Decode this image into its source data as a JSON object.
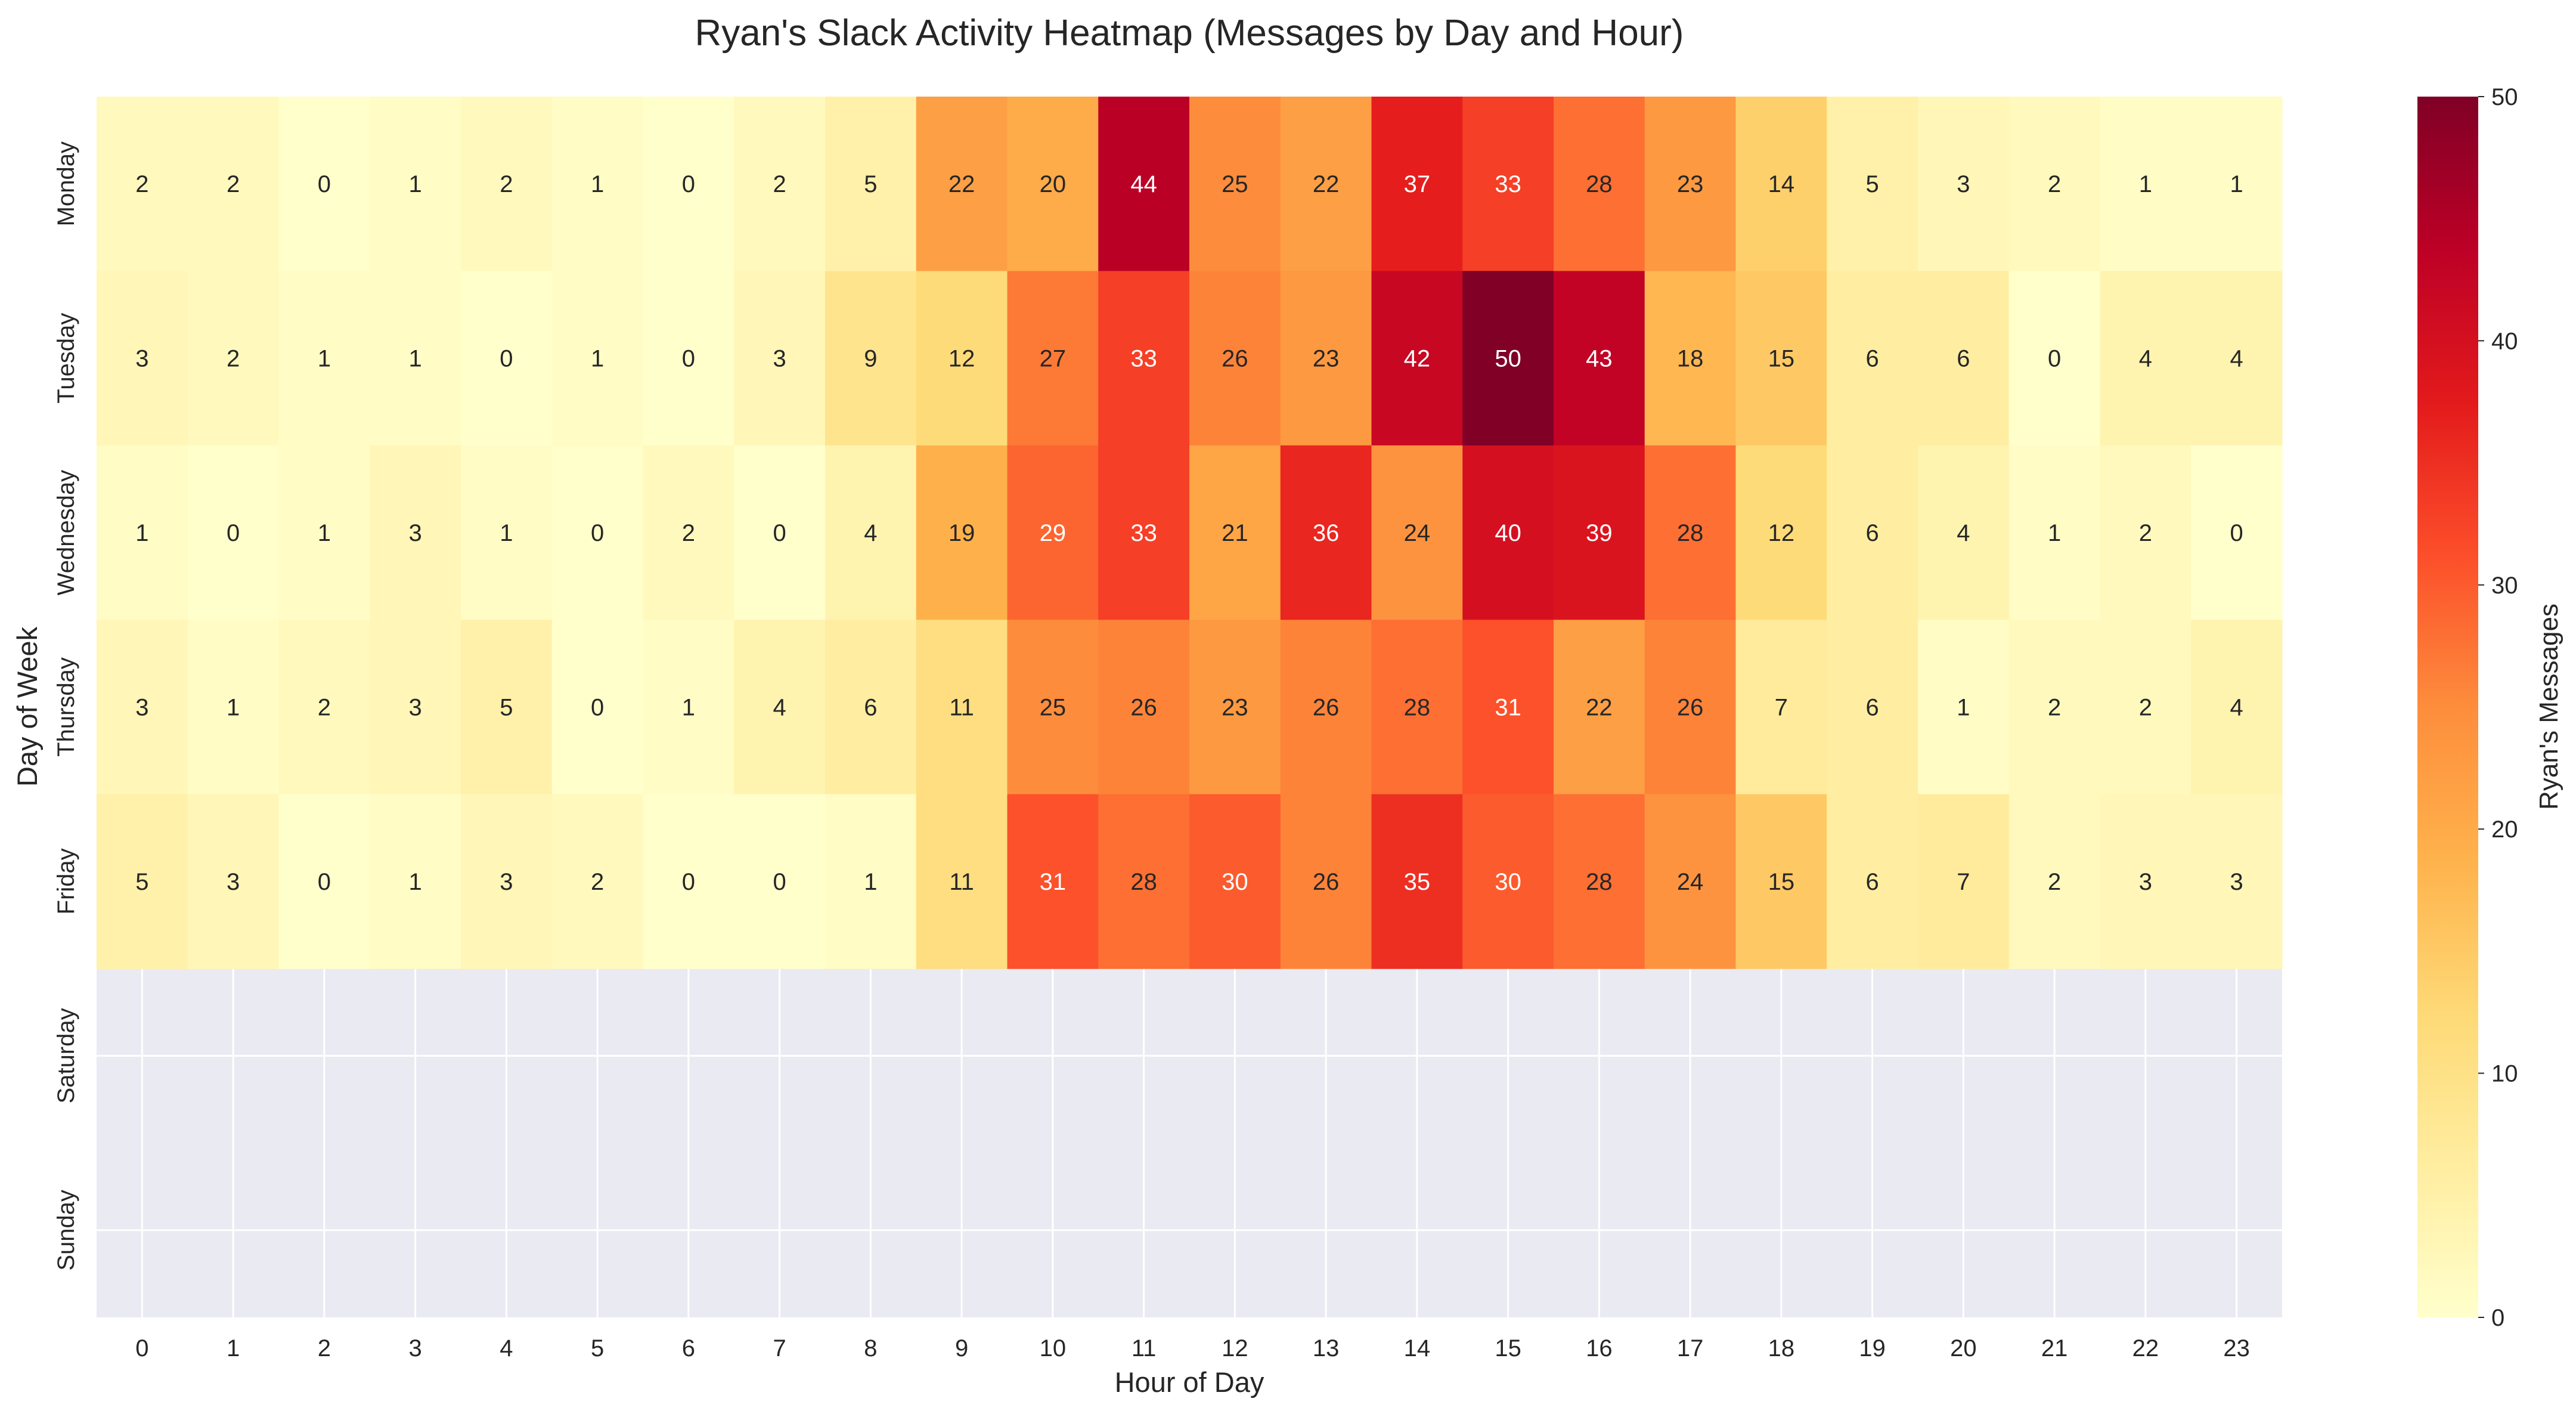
{
  "chart_data": {
    "type": "heatmap",
    "title": "Ryan's Slack Activity Heatmap (Messages by Day and Hour)",
    "xlabel": "Hour of Day",
    "ylabel": "Day of Week",
    "x": [
      "0",
      "1",
      "2",
      "3",
      "4",
      "5",
      "6",
      "7",
      "8",
      "9",
      "10",
      "11",
      "12",
      "13",
      "14",
      "15",
      "16",
      "17",
      "18",
      "19",
      "20",
      "21",
      "22",
      "23"
    ],
    "y": [
      "Monday",
      "Tuesday",
      "Wednesday",
      "Thursday",
      "Friday",
      "Saturday",
      "Sunday"
    ],
    "values": [
      [
        2,
        2,
        0,
        1,
        2,
        1,
        0,
        2,
        5,
        22,
        20,
        44,
        25,
        22,
        37,
        33,
        28,
        23,
        14,
        5,
        3,
        2,
        1,
        1
      ],
      [
        3,
        2,
        1,
        1,
        0,
        1,
        0,
        3,
        9,
        12,
        27,
        33,
        26,
        23,
        42,
        50,
        43,
        18,
        15,
        6,
        6,
        0,
        4,
        4
      ],
      [
        1,
        0,
        1,
        3,
        1,
        0,
        2,
        0,
        4,
        19,
        29,
        33,
        21,
        36,
        24,
        40,
        39,
        28,
        12,
        6,
        4,
        1,
        2,
        0
      ],
      [
        3,
        1,
        2,
        3,
        5,
        0,
        1,
        4,
        6,
        11,
        25,
        26,
        23,
        26,
        28,
        31,
        22,
        26,
        7,
        6,
        1,
        2,
        2,
        4
      ],
      [
        5,
        3,
        0,
        1,
        3,
        2,
        0,
        0,
        1,
        11,
        31,
        28,
        30,
        26,
        35,
        30,
        28,
        24,
        15,
        6,
        7,
        2,
        3,
        3
      ],
      [
        null,
        null,
        null,
        null,
        null,
        null,
        null,
        null,
        null,
        null,
        null,
        null,
        null,
        null,
        null,
        null,
        null,
        null,
        null,
        null,
        null,
        null,
        null,
        null
      ],
      [
        null,
        null,
        null,
        null,
        null,
        null,
        null,
        null,
        null,
        null,
        null,
        null,
        null,
        null,
        null,
        null,
        null,
        null,
        null,
        null,
        null,
        null,
        null,
        null
      ]
    ],
    "colorbar": {
      "label": "Ryan's Messages",
      "range": [
        0,
        50
      ],
      "ticks": [
        "0",
        "10",
        "20",
        "30",
        "40",
        "50"
      ],
      "colormap": "YlOrRd"
    },
    "missing_color": "#eaeaf2",
    "grid": true
  }
}
